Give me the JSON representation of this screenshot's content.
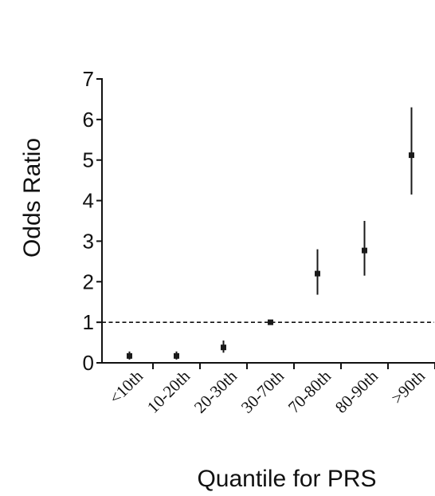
{
  "chart_data": {
    "type": "scatter",
    "title": "",
    "xlabel": "Quantile for PRS",
    "ylabel": "Odds Ratio",
    "ylim": [
      0,
      7
    ],
    "yticks": [
      "0",
      "1",
      "2",
      "3",
      "4",
      "5",
      "6",
      "7"
    ],
    "categories": [
      "<10th",
      "10-20th",
      "20-30th",
      "30-70th",
      "70-80th",
      "80-90th",
      ">90th"
    ],
    "series": [
      {
        "values": [
          0.17,
          0.17,
          0.38,
          1.0,
          2.2,
          2.77,
          5.12
        ],
        "ci_low": [
          0.08,
          0.08,
          0.25,
          1.0,
          1.68,
          2.15,
          4.15
        ],
        "ci_high": [
          0.28,
          0.28,
          0.55,
          1.0,
          2.8,
          3.5,
          6.3
        ]
      }
    ],
    "reference_line": {
      "y": 1,
      "style": "dashed"
    },
    "grid": false,
    "legend": "none",
    "colors": {
      "marker": "#1a1a1a",
      "axis": "#111111"
    }
  }
}
